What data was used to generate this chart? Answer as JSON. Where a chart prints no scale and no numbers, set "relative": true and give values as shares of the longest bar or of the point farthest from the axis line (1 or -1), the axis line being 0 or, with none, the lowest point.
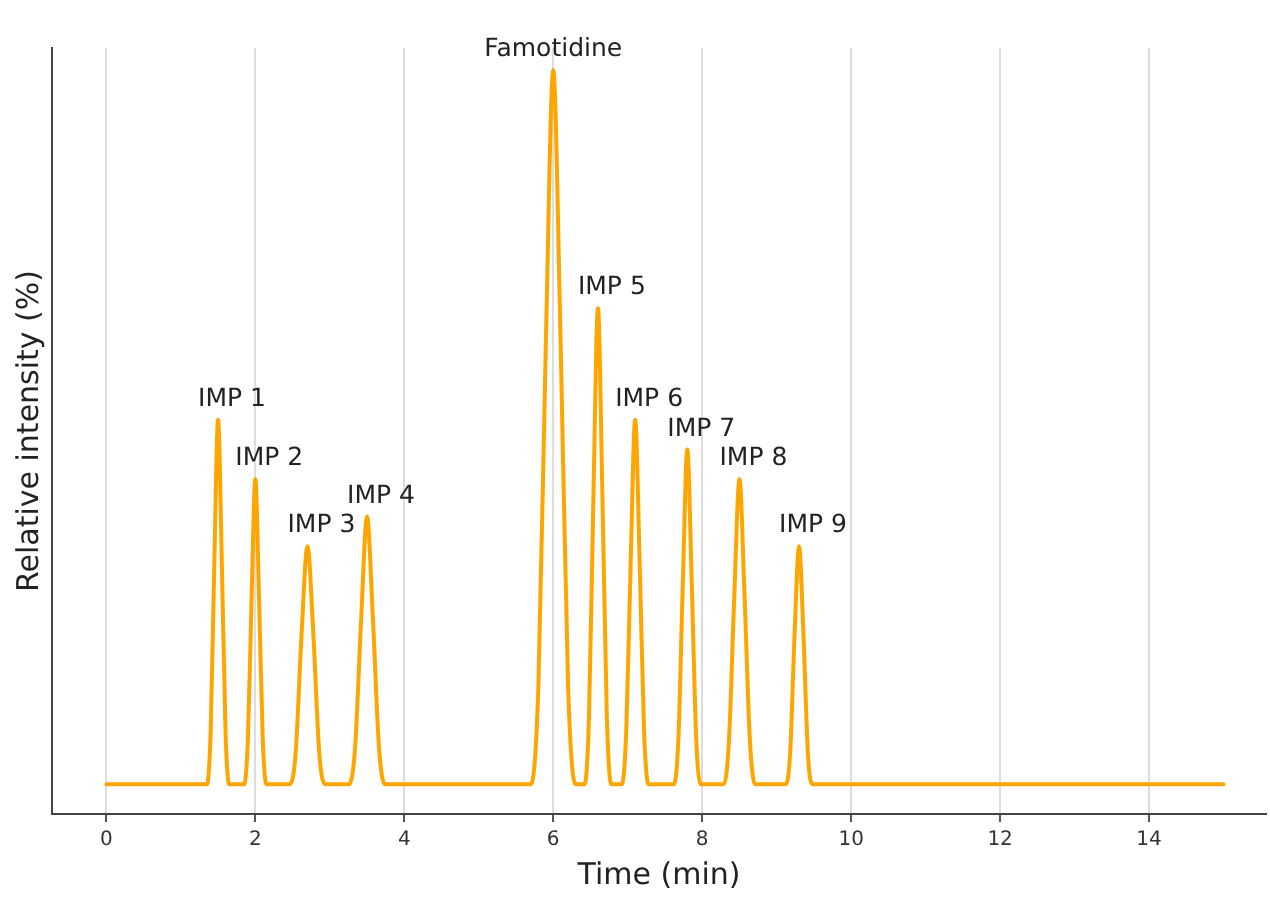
{
  "chart_data": {
    "type": "line",
    "xlabel": "Time (min)",
    "ylabel": "Relative intensity (%)",
    "relative": true,
    "grid": "x",
    "legend": false,
    "marker": "none",
    "line_style": "solid",
    "xlim": [
      -0.73,
      15.57
    ],
    "xticks": [
      0,
      2,
      4,
      6,
      8,
      10,
      12,
      14
    ],
    "series": [
      {
        "color": "#ffa500",
        "x": [
          0,
          1.35,
          1.4,
          1.45,
          1.5,
          1.55,
          1.6,
          1.65,
          1.85,
          1.9,
          1.95,
          2.0,
          2.05,
          2.1,
          2.15,
          2.46,
          2.54,
          2.62,
          2.7,
          2.78,
          2.86,
          2.94,
          3.26,
          3.34,
          3.42,
          3.5,
          3.58,
          3.66,
          3.74,
          5.7,
          5.8,
          5.9,
          6.0,
          6.1,
          6.2,
          6.3,
          6.42,
          6.48,
          6.54,
          6.6,
          6.66,
          6.72,
          6.78,
          6.92,
          6.98,
          7.04,
          7.1,
          7.16,
          7.22,
          7.28,
          7.62,
          7.68,
          7.74,
          7.8,
          7.86,
          7.92,
          7.98,
          8.29,
          8.36,
          8.43,
          8.5,
          8.57,
          8.64,
          8.71,
          9.12,
          9.18,
          9.24,
          9.3,
          9.36,
          9.42,
          9.48,
          15
        ],
        "values": [
          0.04,
          0.04,
          0.11,
          0.34,
          0.53,
          0.34,
          0.11,
          0.04,
          0.04,
          0.1,
          0.29,
          0.45,
          0.29,
          0.1,
          0.04,
          0.04,
          0.08,
          0.24,
          0.36,
          0.24,
          0.08,
          0.04,
          0.04,
          0.09,
          0.26,
          0.4,
          0.26,
          0.09,
          0.04,
          0.04,
          0.17,
          0.63,
          1,
          0.63,
          0.17,
          0.04,
          0.04,
          0.13,
          0.43,
          0.68,
          0.43,
          0.13,
          0.04,
          0.04,
          0.11,
          0.34,
          0.53,
          0.34,
          0.11,
          0.04,
          0.04,
          0.1,
          0.31,
          0.49,
          0.31,
          0.1,
          0.04,
          0.04,
          0.1,
          0.29,
          0.45,
          0.29,
          0.1,
          0.04,
          0.04,
          0.08,
          0.24,
          0.36,
          0.24,
          0.08,
          0.04,
          0.04
        ]
      }
    ],
    "annotations": [
      {
        "text": "IMP 1",
        "x": 1.5,
        "y": 0.53
      },
      {
        "text": "IMP 2",
        "x": 2.0,
        "y": 0.45
      },
      {
        "text": "IMP 3",
        "x": 2.7,
        "y": 0.36
      },
      {
        "text": "IMP 4",
        "x": 3.5,
        "y": 0.4
      },
      {
        "text": "Famotidine",
        "x": 6.0,
        "y": 1
      },
      {
        "text": "IMP 5",
        "x": 6.6,
        "y": 0.68
      },
      {
        "text": "IMP 6",
        "x": 7.1,
        "y": 0.53
      },
      {
        "text": "IMP 7",
        "x": 7.8,
        "y": 0.49
      },
      {
        "text": "IMP 8",
        "x": 8.5,
        "y": 0.45
      },
      {
        "text": "IMP 9",
        "x": 9.3,
        "y": 0.36
      }
    ]
  }
}
